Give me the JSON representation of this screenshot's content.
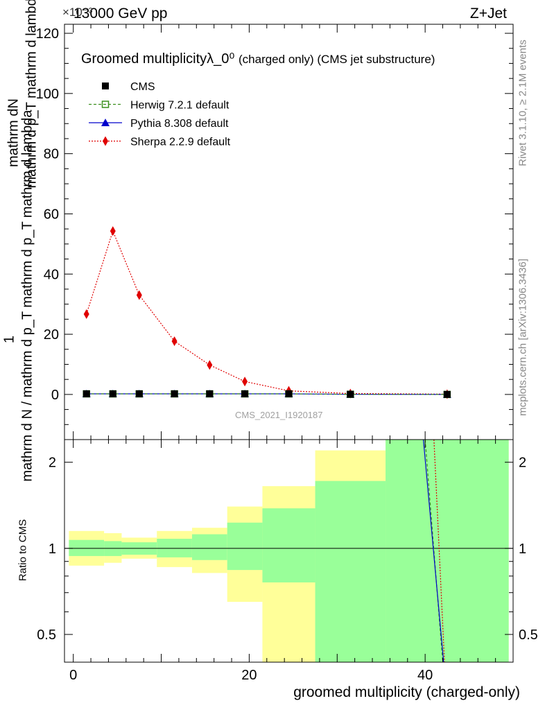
{
  "header": {
    "left": "13000 GeV pp",
    "right": "Z+Jet",
    "exponent": "×10⁻³"
  },
  "side_labels": {
    "rivet": "Rivet 3.1.10, ≥ 2.1M events",
    "mcplots": "mcplots.cern.ch [arXiv:1306.3436]"
  },
  "watermark": "CMS_2021_I1920187",
  "main_ylabel_top": "mathrm dN",
  "main_ylabel_mid": "mathrm d p_T mathrm d lambda",
  "main_ylabel_one": "1",
  "main_ylabel_bottom": "mathrm d N / mathrm d p_T mathrm d p_T mathrm d lambda",
  "ratio_ylabel": "Ratio to CMS",
  "colors": {
    "cms": "#000000",
    "herwig": "#3a8f1c",
    "pythia": "#0000cc",
    "sherpa": "#e00000",
    "band_inner": "#99ff99",
    "band_outer": "#ffff99"
  },
  "chart_data": [
    {
      "type": "line",
      "panel": "main",
      "title": "Groomed multiplicityλ_0⁰",
      "title_suffix": "(charged only) (CMS jet substructure)",
      "xlim": [
        -1,
        50
      ],
      "ylim": [
        -15,
        123
      ],
      "yticks": [
        0,
        20,
        40,
        60,
        80,
        100,
        120
      ],
      "legend_position": "top-left",
      "x": [
        1.5,
        4.5,
        7.5,
        11.5,
        15.5,
        19.5,
        24.5,
        31.5,
        42.5
      ],
      "series": [
        {
          "name": "CMS",
          "key": "cms",
          "marker": "square",
          "values": [
            0.2,
            0.2,
            0.2,
            0.2,
            0.2,
            0.2,
            0.2,
            0.05,
            0.0
          ]
        },
        {
          "name": "Herwig 7.2.1 default",
          "key": "herwig",
          "marker": "open-square",
          "line": "dashed",
          "values": [
            0.2,
            0.2,
            0.2,
            0.2,
            0.2,
            0.2,
            0.2,
            0.05,
            0.0
          ]
        },
        {
          "name": "Pythia 8.308 default",
          "key": "pythia",
          "marker": "triangle",
          "line": "solid",
          "values": [
            0.2,
            0.2,
            0.2,
            0.2,
            0.2,
            0.2,
            0.2,
            0.05,
            0.0
          ]
        },
        {
          "name": "Sherpa 2.2.9 default",
          "key": "sherpa",
          "marker": "diamond",
          "line": "dotted",
          "values": [
            26.7,
            54.3,
            33.0,
            17.7,
            9.8,
            4.3,
            1.2,
            0.3,
            0.1
          ]
        }
      ]
    },
    {
      "type": "area",
      "panel": "ratio",
      "xlabel": "groomed multiplicity (charged-only)",
      "ylabel": "Ratio to CMS",
      "xlim": [
        -1,
        50
      ],
      "ylim": [
        0.4,
        2.4
      ],
      "log_y": true,
      "xticks": [
        0,
        20,
        40
      ],
      "yticks": [
        0.5,
        1,
        2
      ],
      "bins": [
        {
          "lo": -0.5,
          "hi": 3.5,
          "inner": [
            0.94,
            1.07
          ],
          "outer": [
            0.87,
            1.15
          ]
        },
        {
          "lo": 3.5,
          "hi": 5.5,
          "inner": [
            0.94,
            1.06
          ],
          "outer": [
            0.89,
            1.13
          ]
        },
        {
          "lo": 5.5,
          "hi": 9.5,
          "inner": [
            0.95,
            1.05
          ],
          "outer": [
            0.92,
            1.09
          ]
        },
        {
          "lo": 9.5,
          "hi": 13.5,
          "inner": [
            0.93,
            1.08
          ],
          "outer": [
            0.86,
            1.15
          ]
        },
        {
          "lo": 13.5,
          "hi": 17.5,
          "inner": [
            0.91,
            1.12
          ],
          "outer": [
            0.82,
            1.18
          ]
        },
        {
          "lo": 17.5,
          "hi": 21.5,
          "inner": [
            0.84,
            1.23
          ],
          "outer": [
            0.65,
            1.4
          ]
        },
        {
          "lo": 21.5,
          "hi": 27.5,
          "inner": [
            0.76,
            1.38
          ],
          "outer": [
            0.3,
            1.65
          ]
        },
        {
          "lo": 27.5,
          "hi": 35.5,
          "inner": [
            0.3,
            1.72
          ],
          "outer": [
            0.3,
            2.2
          ]
        },
        {
          "lo": 35.5,
          "hi": 49.5,
          "inner": [
            0.3,
            3.0
          ],
          "outer": [
            0.3,
            3.0
          ]
        }
      ],
      "ratio_lines": [
        {
          "key": "herwig",
          "points": [
            [
              40.0,
              2.4
            ],
            [
              42.0,
              0.4
            ]
          ]
        },
        {
          "key": "pythia",
          "points": [
            [
              39.8,
              2.4
            ],
            [
              42.1,
              0.4
            ]
          ]
        },
        {
          "key": "sherpa",
          "points": [
            [
              41.0,
              2.4
            ],
            [
              42.2,
              0.4
            ]
          ]
        }
      ]
    }
  ]
}
